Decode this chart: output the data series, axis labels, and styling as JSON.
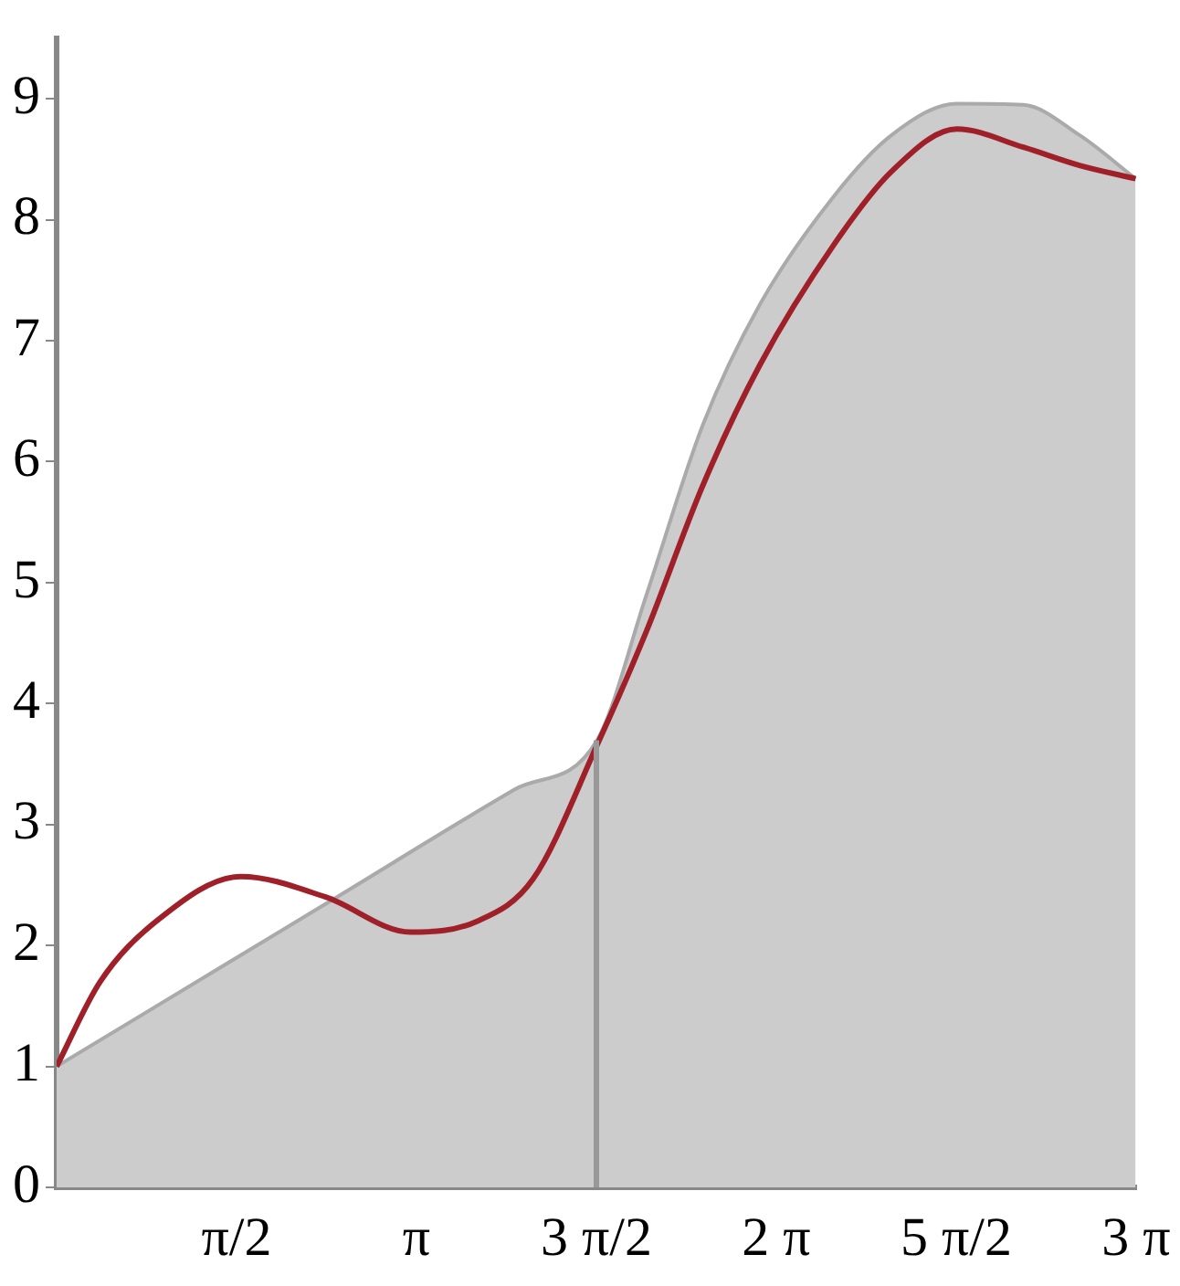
{
  "chart_data": {
    "type": "line",
    "xlim": [
      0,
      9.4248
    ],
    "ylim": [
      0,
      9.5
    ],
    "xticks": [
      {
        "value": 1.5708,
        "label": "π/2"
      },
      {
        "value": 3.1416,
        "label": "π"
      },
      {
        "value": 4.7124,
        "label": "3 π/2"
      },
      {
        "value": 6.2832,
        "label": "2 π"
      },
      {
        "value": 7.854,
        "label": "5 π/2"
      },
      {
        "value": 9.4248,
        "label": "3 π"
      }
    ],
    "yticks": [
      0,
      1,
      2,
      3,
      4,
      5,
      6,
      7,
      8,
      9
    ],
    "grid": false,
    "legend": false,
    "marker": "none",
    "line_style": "solid",
    "ref_lines": [
      {
        "axis": "x",
        "value": 4.7124,
        "color": "#999999"
      }
    ],
    "series": [
      {
        "type": "area",
        "color": "#cccccc",
        "x": [
          0,
          2.36,
          4.0,
          4.72,
          5.15,
          5.64,
          6.14,
          6.79,
          7.29,
          7.86,
          8.44,
          8.93,
          9.42
        ],
        "values": [
          1,
          2.35,
          3.29,
          3.7,
          4.9,
          6.3,
          7.3,
          8.2,
          8.7,
          8.96,
          8.95,
          8.7,
          8.34
        ]
      },
      {
        "type": "line",
        "color": "#a0202a",
        "x": [
          0,
          0.38,
          0.87,
          1.61,
          2.35,
          3.09,
          3.67,
          4.16,
          4.72,
          5.15,
          5.64,
          6.14,
          6.79,
          7.29,
          7.86,
          8.44,
          8.93,
          9.42
        ],
        "values": [
          1,
          1.7,
          2.2,
          2.57,
          2.4,
          2.11,
          2.2,
          2.55,
          3.66,
          4.6,
          5.8,
          6.8,
          7.8,
          8.4,
          8.75,
          8.6,
          8.45,
          8.34
        ]
      }
    ]
  }
}
